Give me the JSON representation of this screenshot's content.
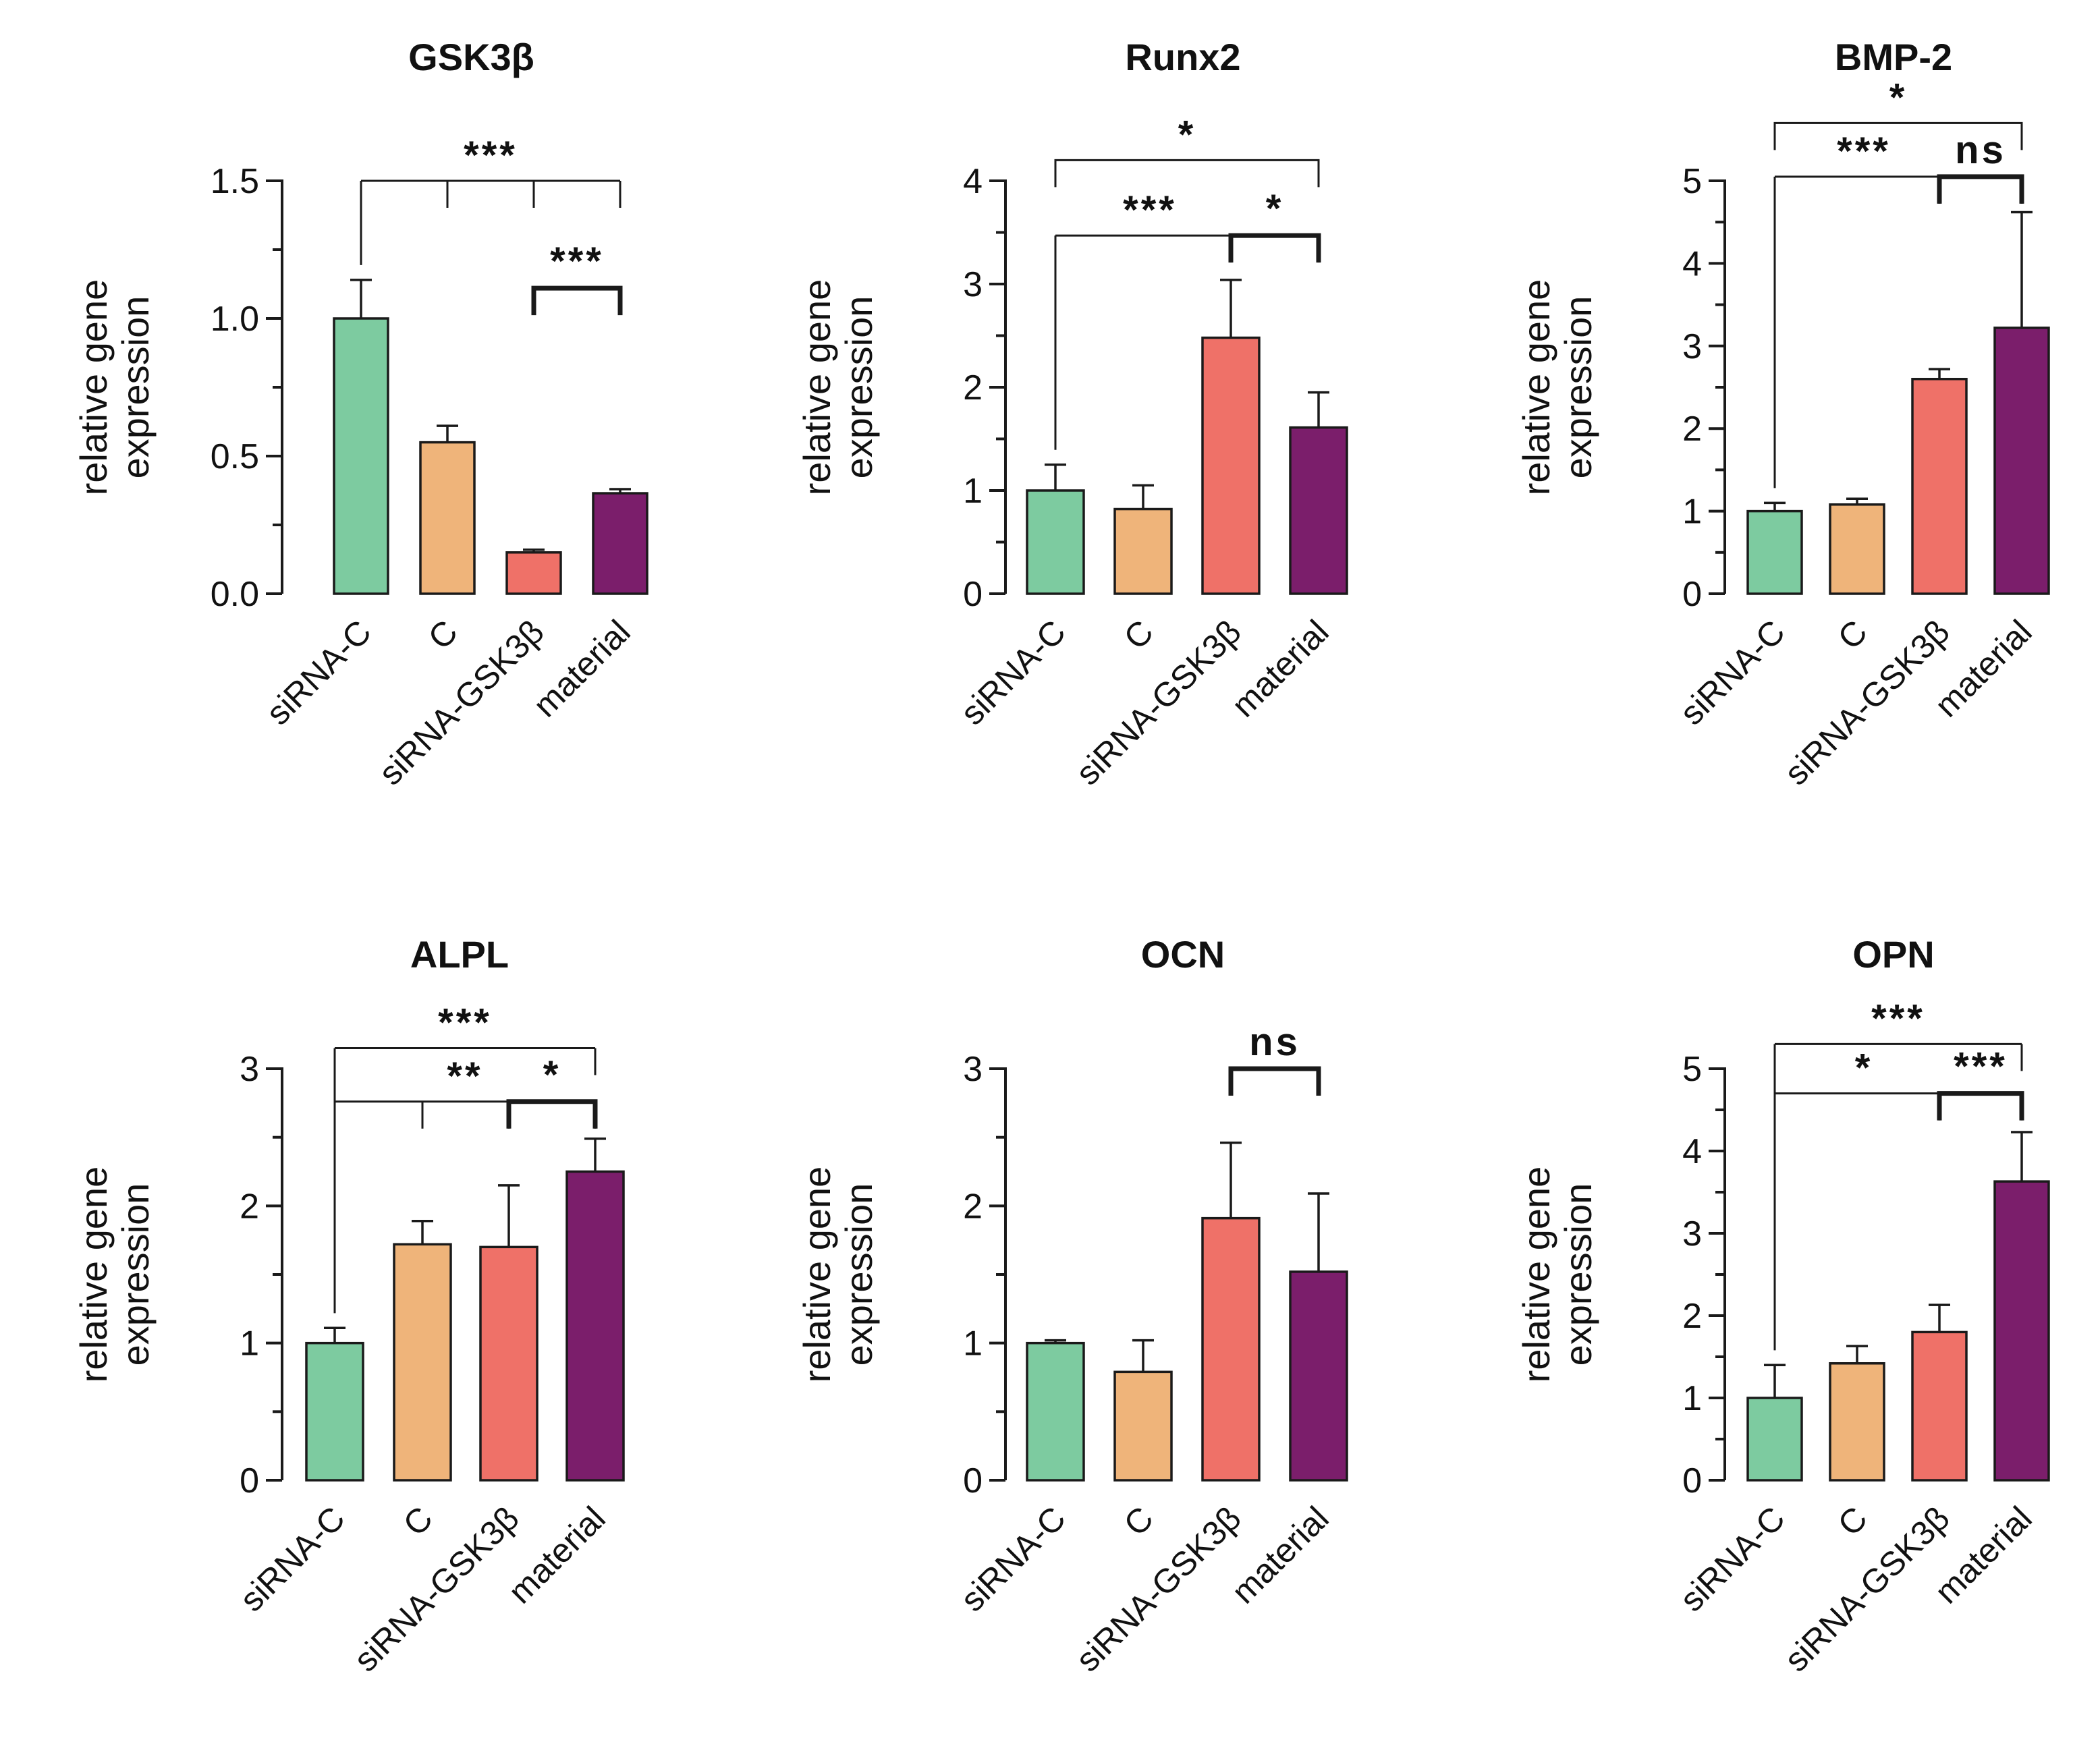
{
  "colors": {
    "siRNA-C": "#7dcba0",
    "C": "#efb47a",
    "siRNA-GSK3β": "#ef7168",
    "material": "#7b1e6b",
    "axis": "#1a1a1a"
  },
  "chart_data": [
    {
      "type": "bar",
      "title": "GSK3β",
      "ylabel": "relative gene expression",
      "ylabel_lines": [
        "relative gene",
        "expression"
      ],
      "categories": [
        "siRNA-C",
        "C",
        "siRNA-GSK3β",
        "material"
      ],
      "values": [
        1.0,
        0.55,
        0.15,
        0.365
      ],
      "errors": [
        0.14,
        0.06,
        0.01,
        0.015
      ],
      "ylim": [
        0,
        1.5
      ],
      "yticks": [
        0.0,
        0.5,
        1.0,
        1.5
      ],
      "yticklabels": [
        "0.0",
        "0.5",
        "1.0",
        "1.5"
      ],
      "minor_ticks": 1,
      "annotations": [
        {
          "type": "comb",
          "ref": 0,
          "targets": [
            1,
            2,
            3
          ],
          "y": 1.5,
          "label": "***"
        },
        {
          "type": "pair",
          "from": 2,
          "to": 3,
          "y": 1.11,
          "label": "***"
        }
      ]
    },
    {
      "type": "bar",
      "title": "Runx2",
      "ylabel": "relative gene expression",
      "ylabel_lines": [
        "relative gene",
        "expression"
      ],
      "categories": [
        "siRNA-C",
        "C",
        "siRNA-GSK3β",
        "material"
      ],
      "values": [
        1.0,
        0.82,
        2.48,
        1.61
      ],
      "errors": [
        0.25,
        0.23,
        0.56,
        0.34
      ],
      "ylim": [
        0,
        4
      ],
      "yticks": [
        0,
        1,
        2,
        3,
        4
      ],
      "yticklabels": [
        "0",
        "1",
        "2",
        "3",
        "4"
      ],
      "minor_ticks": 1,
      "annotations": [
        {
          "type": "single",
          "from": 0,
          "to": 3,
          "y": 4.2,
          "label": "*"
        },
        {
          "type": "comb",
          "ref": 0,
          "targets": [
            2,
            3
          ],
          "y": 3.47,
          "label": "***"
        },
        {
          "type": "pair",
          "from": 2,
          "to": 3,
          "y": 3.47,
          "label": "*"
        }
      ]
    },
    {
      "type": "bar",
      "title": "BMP-2",
      "ylabel": "relative gene expression",
      "ylabel_lines": [
        "relative gene",
        "expression"
      ],
      "categories": [
        "siRNA-C",
        "C",
        "siRNA-GSK3β",
        "material"
      ],
      "values": [
        1.0,
        1.08,
        2.6,
        3.22
      ],
      "errors": [
        0.1,
        0.07,
        0.12,
        1.4
      ],
      "ylim": [
        0,
        5
      ],
      "yticks": [
        0,
        1,
        2,
        3,
        4,
        5
      ],
      "yticklabels": [
        "0",
        "1",
        "2",
        "3",
        "4",
        "5"
      ],
      "minor_ticks": 1,
      "annotations": [
        {
          "type": "single",
          "from": 0,
          "to": 3,
          "y": 5.7,
          "label": "*"
        },
        {
          "type": "comb",
          "ref": 0,
          "targets": [
            2,
            3
          ],
          "y": 5.05,
          "label": "***"
        },
        {
          "type": "pair",
          "from": 2,
          "to": 3,
          "y": 5.05,
          "label": "ns"
        }
      ]
    },
    {
      "type": "bar",
      "title": "ALPL",
      "ylabel": "relative gene expression",
      "ylabel_lines": [
        "relative gene",
        "expression"
      ],
      "categories": [
        "siRNA-C",
        "C",
        "siRNA-GSK3β",
        "material"
      ],
      "values": [
        1.0,
        1.72,
        1.7,
        2.25
      ],
      "errors": [
        0.11,
        0.17,
        0.45,
        0.24
      ],
      "ylim": [
        0,
        3
      ],
      "yticks": [
        0,
        1,
        2,
        3
      ],
      "yticklabels": [
        "0",
        "1",
        "2",
        "3"
      ],
      "minor_ticks": 1,
      "annotations": [
        {
          "type": "comb",
          "ref": 0,
          "targets": [
            3
          ],
          "y": 3.15,
          "label": "***"
        },
        {
          "type": "comb",
          "ref": 0,
          "targets": [
            1,
            2,
            3
          ],
          "y": 2.76,
          "label": "**"
        },
        {
          "type": "pair",
          "from": 2,
          "to": 3,
          "y": 2.76,
          "label": "*"
        }
      ]
    },
    {
      "type": "bar",
      "title": "OCN",
      "ylabel": "relative gene expression",
      "ylabel_lines": [
        "relative gene",
        "expression"
      ],
      "categories": [
        "siRNA-C",
        "C",
        "siRNA-GSK3β",
        "material"
      ],
      "values": [
        1.0,
        0.79,
        1.91,
        1.52
      ],
      "errors": [
        0.02,
        0.23,
        0.55,
        0.57
      ],
      "ylim": [
        0,
        3
      ],
      "yticks": [
        0,
        1,
        2,
        3
      ],
      "yticklabels": [
        "0",
        "1",
        "2",
        "3"
      ],
      "minor_ticks": 1,
      "annotations": [
        {
          "type": "pair",
          "from": 2,
          "to": 3,
          "y": 3.0,
          "label": "ns"
        }
      ]
    },
    {
      "type": "bar",
      "title": "OPN",
      "ylabel": "relative gene expression",
      "ylabel_lines": [
        "relative gene",
        "expression"
      ],
      "categories": [
        "siRNA-C",
        "C",
        "siRNA-GSK3β",
        "material"
      ],
      "values": [
        1.0,
        1.42,
        1.8,
        3.63
      ],
      "errors": [
        0.4,
        0.21,
        0.33,
        0.6
      ],
      "ylim": [
        0,
        5
      ],
      "yticks": [
        0,
        1,
        2,
        3,
        4,
        5
      ],
      "yticklabels": [
        "0",
        "1",
        "2",
        "3",
        "4",
        "5"
      ],
      "minor_ticks": 1,
      "annotations": [
        {
          "type": "comb",
          "ref": 0,
          "targets": [
            3
          ],
          "y": 5.3,
          "label": "***"
        },
        {
          "type": "comb",
          "ref": 0,
          "targets": [
            2,
            3
          ],
          "y": 4.7,
          "label": "*"
        },
        {
          "type": "pair",
          "from": 2,
          "to": 3,
          "y": 4.7,
          "label": "***"
        }
      ]
    }
  ]
}
